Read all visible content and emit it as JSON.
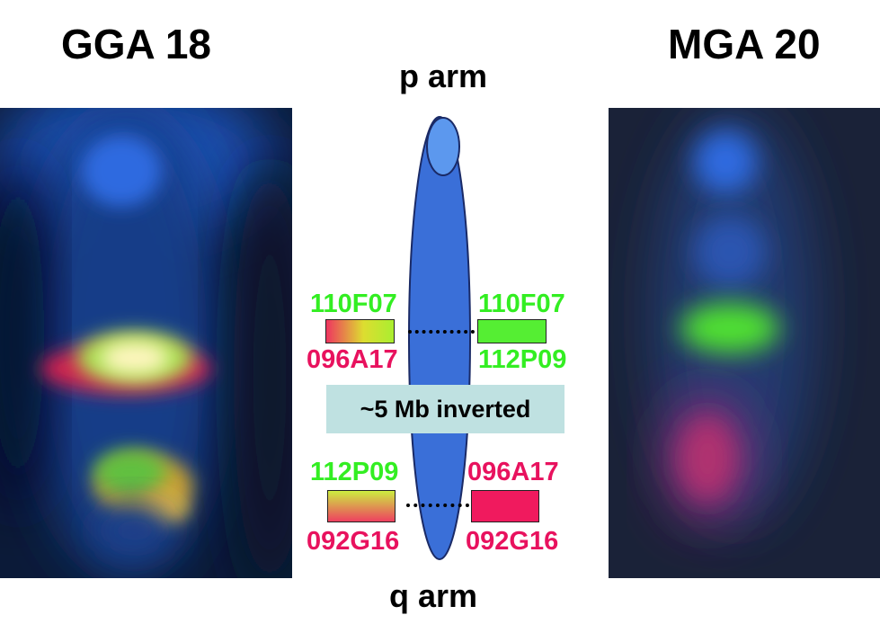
{
  "left_title": "GGA 18",
  "right_title": "MGA 20",
  "p_arm": "p arm",
  "q_arm": "q arm",
  "inversion_label": "~5 Mb inverted",
  "labels": {
    "upper_left_top": "110F07",
    "upper_left_bottom": "096A17",
    "upper_right_top": "110F07",
    "upper_right_bottom": "112P09",
    "lower_left_top": "112P09",
    "lower_left_bottom": "092G16",
    "lower_right_top": "096A17",
    "lower_right_bottom": "092G16"
  },
  "colors": {
    "green": "#33ee22",
    "pink": "#e8125e",
    "chromosome": "#3a6fd8",
    "inversion_box": "#bfe1e1"
  }
}
